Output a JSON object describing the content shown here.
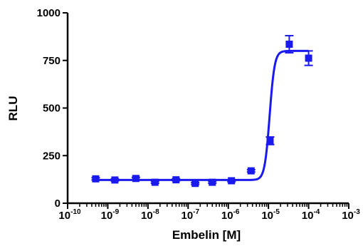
{
  "chart_data": {
    "type": "scatter",
    "xlabel": "Embelin [M]",
    "ylabel": "RLU",
    "x_scale": "log",
    "xlim": [
      1e-10,
      0.001
    ],
    "ylim": [
      0,
      1000
    ],
    "x_ticks": [
      {
        "base": "10",
        "exp": "-10",
        "value": 1e-10
      },
      {
        "base": "10",
        "exp": "-9",
        "value": 1e-09
      },
      {
        "base": "10",
        "exp": "-8",
        "value": 1e-08
      },
      {
        "base": "10",
        "exp": "-7",
        "value": 1e-07
      },
      {
        "base": "10",
        "exp": "-6",
        "value": 1e-06
      },
      {
        "base": "10",
        "exp": "-5",
        "value": 1e-05
      },
      {
        "base": "10",
        "exp": "-4",
        "value": 0.0001
      },
      {
        "base": "10",
        "exp": "-3",
        "value": 0.001
      }
    ],
    "y_ticks": [
      {
        "label": "0",
        "value": 0
      },
      {
        "label": "250",
        "value": 250
      },
      {
        "label": "500",
        "value": 500
      },
      {
        "label": "750",
        "value": 750
      },
      {
        "label": "1000",
        "value": 1000
      }
    ],
    "grid": false,
    "legend": "none",
    "series": [
      {
        "points": [
          {
            "x": 5e-10,
            "y": 128,
            "err": 6
          },
          {
            "x": 1.5e-09,
            "y": 122,
            "err": 5
          },
          {
            "x": 5e-09,
            "y": 130,
            "err": 6
          },
          {
            "x": 1.5e-08,
            "y": 110,
            "err": 5
          },
          {
            "x": 5e-08,
            "y": 123,
            "err": 5
          },
          {
            "x": 1.5e-07,
            "y": 104,
            "err": 5
          },
          {
            "x": 4e-07,
            "y": 110,
            "err": 5
          },
          {
            "x": 1.2e-06,
            "y": 118,
            "err": 5
          },
          {
            "x": 3.7e-06,
            "y": 170,
            "err": 6
          },
          {
            "x": 1.1e-05,
            "y": 328,
            "err": 20
          },
          {
            "x": 3.3e-05,
            "y": 835,
            "err": 45
          },
          {
            "x": 0.0001,
            "y": 762,
            "err": 38
          }
        ],
        "fit": {
          "bottom": 122,
          "top": 800,
          "log_ec50": -4.97,
          "hill": 7
        }
      }
    ],
    "colors": {
      "series": "#1a1aee",
      "axes": "#000000"
    }
  }
}
